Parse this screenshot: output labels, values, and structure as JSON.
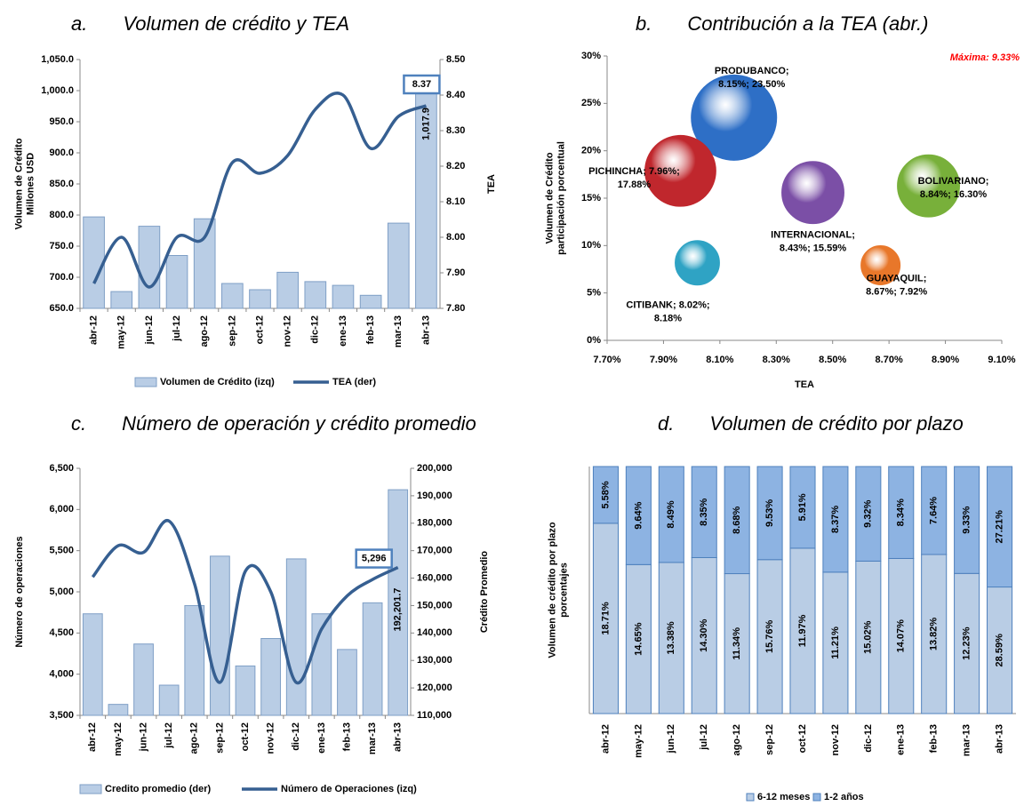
{
  "chart_data": [
    {
      "type": "combo",
      "label": "a.",
      "title": "Volumen de crédito y TEA",
      "categories": [
        "abr-12",
        "may-12",
        "jun-12",
        "jul-12",
        "ago-12",
        "sep-12",
        "oct-12",
        "nov-12",
        "dic-12",
        "ene-13",
        "feb-13",
        "mar-13",
        "abr-13"
      ],
      "ylabel": [
        "Volumen de Crédito",
        "Millones USD"
      ],
      "y2label": "TEA",
      "ylim": [
        650,
        1050
      ],
      "yticks": [
        {
          "value": 650,
          "label": "650.0"
        },
        {
          "value": 700,
          "label": "700.0"
        },
        {
          "value": 750,
          "label": "750.0"
        },
        {
          "value": 800,
          "label": "800.0"
        },
        {
          "value": 850,
          "label": "850.0"
        },
        {
          "value": 900,
          "label": "900.0"
        },
        {
          "value": 950,
          "label": "950.0"
        },
        {
          "value": 1000,
          "label": "1,000.0"
        },
        {
          "value": 1050,
          "label": "1,050.0"
        }
      ],
      "y2lim": [
        7.8,
        8.5
      ],
      "y2ticks": [
        {
          "value": 7.8,
          "label": "7.80"
        },
        {
          "value": 7.9,
          "label": "7.90"
        },
        {
          "value": 8,
          "label": "8.00"
        },
        {
          "value": 8.1,
          "label": "8.10"
        },
        {
          "value": 8.2,
          "label": "8.20"
        },
        {
          "value": 8.3,
          "label": "8.30"
        },
        {
          "value": 8.4,
          "label": "8.40"
        },
        {
          "value": 8.5,
          "label": "8.50"
        }
      ],
      "series": [
        {
          "name": "Volumen de Crédito (izq)",
          "kind": "bar",
          "color": "#b9cde5",
          "values": [
            797,
            677,
            782,
            735,
            794,
            690,
            680,
            708,
            693,
            687,
            671,
            787,
            1017.9
          ],
          "value_labels": [
            null,
            null,
            null,
            null,
            null,
            null,
            null,
            null,
            null,
            null,
            null,
            null,
            "1,017.9"
          ]
        },
        {
          "name": "TEA (der)",
          "kind": "line",
          "axis": "y2",
          "color": "#365f91",
          "values": [
            7.87,
            8.0,
            7.86,
            8.0,
            8.0,
            8.21,
            8.18,
            8.23,
            8.36,
            8.4,
            8.25,
            8.34,
            8.37
          ],
          "value_labels": [
            null,
            null,
            null,
            null,
            null,
            null,
            null,
            null,
            null,
            null,
            null,
            null,
            "8.37"
          ]
        }
      ]
    },
    {
      "type": "bubble",
      "label": "b.",
      "title": "Contribución a la TEA (abr.)",
      "xlabel": "TEA",
      "ylabel": [
        "Volumen de Crédito",
        "participación porcentual"
      ],
      "annotation": "Máxima: 9.33%",
      "xlim": [
        7.7,
        9.1
      ],
      "xticks": [
        {
          "value": 7.7,
          "label": "7.70%"
        },
        {
          "value": 7.9,
          "label": "7.90%"
        },
        {
          "value": 8.1,
          "label": "8.10%"
        },
        {
          "value": 8.3,
          "label": "8.30%"
        },
        {
          "value": 8.5,
          "label": "8.50%"
        },
        {
          "value": 8.7,
          "label": "8.70%"
        },
        {
          "value": 8.9,
          "label": "8.90%"
        },
        {
          "value": 9.1,
          "label": "9.10%"
        }
      ],
      "ylim": [
        0,
        30
      ],
      "yticks": [
        {
          "value": 0,
          "label": "0%"
        },
        {
          "value": 5,
          "label": "5%"
        },
        {
          "value": 10,
          "label": "10%"
        },
        {
          "value": 15,
          "label": "15%"
        },
        {
          "value": 20,
          "label": "20%"
        },
        {
          "value": 25,
          "label": "25%"
        },
        {
          "value": 30,
          "label": "30%"
        }
      ],
      "x": [
        8.15,
        7.96,
        8.43,
        8.84,
        8.02,
        8.67
      ],
      "values": [
        23.5,
        17.88,
        15.59,
        16.3,
        8.18,
        7.92
      ],
      "sizes": [
        100,
        69,
        53,
        53,
        27,
        21
      ],
      "colors": [
        "#2e6fc6",
        "#c0272d",
        "#7b4fa6",
        "#78b03a",
        "#2fa3c4",
        "#e8772a"
      ],
      "labels": [
        [
          "PRODUBANCO;",
          "8.15%; 23.50%"
        ],
        [
          "PICHINCHA; 7.96%;",
          "17.88%"
        ],
        [
          "INTERNACIONAL;",
          "8.43%; 15.59%"
        ],
        [
          "BOLIVARIANO;",
          "8.84%; 16.30%"
        ],
        [
          "CITIBANK; 8.02%;",
          "8.18%"
        ],
        [
          "GUAYAQUIL;",
          "8.67%; 7.92%"
        ]
      ]
    },
    {
      "type": "combo",
      "label": "c.",
      "title": "Número de operación y crédito promedio",
      "categories": [
        "abr-12",
        "may-12",
        "jun-12",
        "jul-12",
        "ago-12",
        "sep-12",
        "oct-12",
        "nov-12",
        "dic-12",
        "ene-13",
        "feb-13",
        "mar-13",
        "abr-13"
      ],
      "ylabel": [
        "Número de operaciones"
      ],
      "y2label": "Crédito Promedio",
      "ylim": [
        3500,
        6500
      ],
      "yticks": [
        {
          "value": 3500,
          "label": "3,500"
        },
        {
          "value": 4000,
          "label": "4,000"
        },
        {
          "value": 4500,
          "label": "4,500"
        },
        {
          "value": 5000,
          "label": "5,000"
        },
        {
          "value": 5500,
          "label": "5,500"
        },
        {
          "value": 6000,
          "label": "6,000"
        },
        {
          "value": 6500,
          "label": "6,500"
        }
      ],
      "y2lim": [
        110000,
        200000
      ],
      "y2ticks": [
        {
          "value": 110000,
          "label": "110,000"
        },
        {
          "value": 120000,
          "label": "120,000"
        },
        {
          "value": 130000,
          "label": "130,000"
        },
        {
          "value": 140000,
          "label": "140,000"
        },
        {
          "value": 150000,
          "label": "150,000"
        },
        {
          "value": 160000,
          "label": "160,000"
        },
        {
          "value": 170000,
          "label": "170,000"
        },
        {
          "value": 180000,
          "label": "180,000"
        },
        {
          "value": 190000,
          "label": "190,000"
        },
        {
          "value": 200000,
          "label": "200,000"
        }
      ],
      "series": [
        {
          "name": "Credito promedio (der)",
          "kind": "bar",
          "axis": "y2",
          "color": "#b9cde5",
          "values": [
            147000,
            114000,
            136000,
            121000,
            150000,
            168000,
            128000,
            138000,
            167000,
            147000,
            134000,
            151000,
            192201.7
          ],
          "value_labels": [
            null,
            null,
            null,
            null,
            null,
            null,
            null,
            null,
            null,
            null,
            null,
            null,
            "192,201.7"
          ]
        },
        {
          "name": "Número de Operaciones (izq)",
          "kind": "line",
          "color": "#365f91",
          "values": [
            5180,
            5560,
            5480,
            5860,
            5100,
            3900,
            5250,
            5000,
            3900,
            4550,
            4950,
            5150,
            5296
          ],
          "value_labels": [
            null,
            null,
            null,
            null,
            null,
            null,
            null,
            null,
            null,
            null,
            null,
            null,
            "5,296"
          ]
        }
      ]
    },
    {
      "type": "stacked-bar",
      "stacking": "percent",
      "label": "d.",
      "title": "Volumen de crédito por plazo",
      "ylabel": [
        "Volumen de crédito por plazo",
        "porcentajes"
      ],
      "categories": [
        "abr-12",
        "may-12",
        "jun-12",
        "jul-12",
        "ago-12",
        "sep-12",
        "oct-12",
        "nov-12",
        "dic-12",
        "ene-13",
        "feb-13",
        "mar-13",
        "abr-13"
      ],
      "series": [
        {
          "name": "6-12 meses",
          "color": "#b9cde5",
          "values": [
            18.71,
            14.65,
            13.38,
            14.3,
            11.34,
            15.76,
            11.97,
            11.21,
            15.02,
            14.07,
            13.82,
            12.23,
            28.59
          ],
          "value_labels": [
            "18.71%",
            "14.65%",
            "13.38%",
            "14.30%",
            "11.34%",
            "15.76%",
            "11.97%",
            "11.21%",
            "15.02%",
            "14.07%",
            "13.82%",
            "12.23%",
            "28.59%"
          ]
        },
        {
          "name": "1-2 años",
          "color": "#8db3e2",
          "values": [
            5.58,
            9.64,
            8.49,
            8.35,
            8.68,
            9.53,
            5.91,
            8.37,
            9.32,
            8.34,
            7.64,
            9.33,
            27.21
          ],
          "value_labels": [
            "5.58%",
            "9.64%",
            "8.49%",
            "8.35%",
            "8.68%",
            "9.53%",
            "5.91%",
            "8.37%",
            "9.32%",
            "8.34%",
            "7.64%",
            "9.33%",
            "27.21%"
          ]
        }
      ]
    }
  ]
}
